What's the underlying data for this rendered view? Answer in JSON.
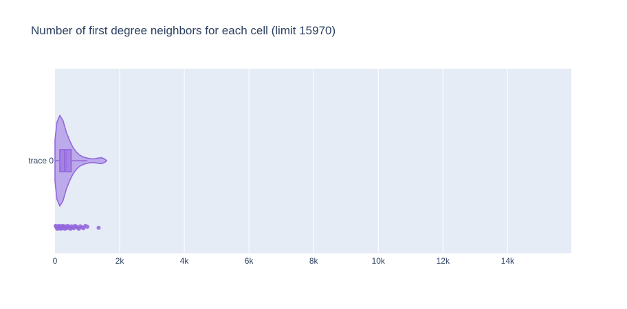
{
  "chart_data": {
    "type": "violin",
    "title": "Number of first degree neighbors for each cell (limit 15970)",
    "orientation": "horizontal",
    "xlabel": "",
    "ylabel": "",
    "xlim": [
      0,
      15970
    ],
    "x_ticks": [
      {
        "value": 0,
        "label": "0"
      },
      {
        "value": 2000,
        "label": "2k"
      },
      {
        "value": 4000,
        "label": "4k"
      },
      {
        "value": 6000,
        "label": "6k"
      },
      {
        "value": 8000,
        "label": "8k"
      },
      {
        "value": 10000,
        "label": "10k"
      },
      {
        "value": 12000,
        "label": "12k"
      },
      {
        "value": 14000,
        "label": "14k"
      }
    ],
    "categories": [
      "trace 0"
    ],
    "grid": true,
    "legend": "none",
    "colors": {
      "violin_line": "#9467dd",
      "violin_fill": "rgba(148,103,221,0.5)",
      "box_fill": "rgba(148,103,221,0.6)",
      "plot_bg": "#e5ecf6",
      "grid": "#ffffff",
      "text": "#2a3f5f"
    },
    "series": [
      {
        "category": "trace 0",
        "density_profile": [
          [
            0,
            0.45
          ],
          [
            60,
            0.85
          ],
          [
            150,
            1.0
          ],
          [
            250,
            0.88
          ],
          [
            350,
            0.63
          ],
          [
            450,
            0.45
          ],
          [
            550,
            0.3
          ],
          [
            650,
            0.2
          ],
          [
            750,
            0.13
          ],
          [
            850,
            0.09
          ],
          [
            950,
            0.065
          ],
          [
            1050,
            0.05
          ],
          [
            1150,
            0.04
          ],
          [
            1250,
            0.045
          ],
          [
            1350,
            0.06
          ],
          [
            1450,
            0.065
          ],
          [
            1550,
            0.03
          ],
          [
            1600,
            0.0
          ]
        ],
        "box": {
          "q1": 150,
          "median": 300,
          "q3": 500,
          "lowerfence": 0,
          "upperfence": 1000,
          "mean": 350
        },
        "points": [
          20,
          40,
          55,
          70,
          85,
          100,
          115,
          130,
          145,
          160,
          175,
          190,
          205,
          220,
          240,
          260,
          280,
          300,
          320,
          345,
          370,
          395,
          420,
          450,
          480,
          510,
          540,
          580,
          620,
          660,
          700,
          740,
          780,
          830,
          880,
          940,
          1000,
          1350
        ]
      }
    ]
  }
}
